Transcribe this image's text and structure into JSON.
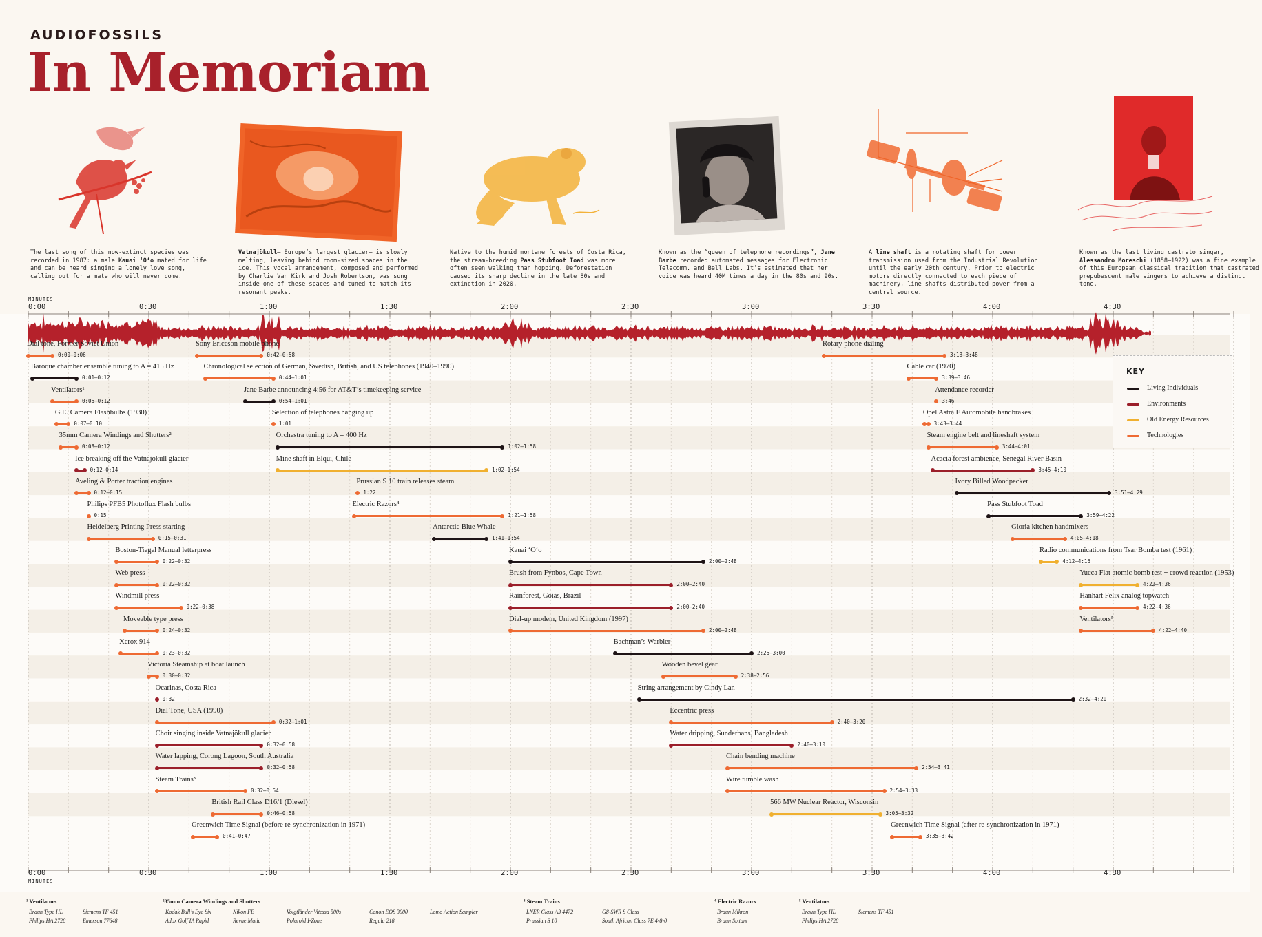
{
  "header": {
    "brand": "AUDIOFOSSILS",
    "title": "In Memoriam"
  },
  "cards": [
    {
      "icon": "bird-illustration-icon",
      "color": "#d9352b",
      "caption_html": "The last song of this now-extinct species was recorded in 1987: a male <b>Kauai ʻOʻo</b> mated for life and can be heard singing a lonely love song, calling out for a mate who will never come."
    },
    {
      "icon": "glacier-photo-icon",
      "color": "#f06428",
      "caption_html": "<b>Vatnajökull</b>– Europe’s largest glacier– is slowly melting, leaving behind room-sized spaces in the ice. This vocal arrangement, composed and performed by Charlie Van Kirk and Josh Robertson, was sung inside one of these spaces and tuned to match its resonant peaks."
    },
    {
      "icon": "frog-illustration-icon",
      "color": "#f3b23a",
      "caption_html": "Native to the humid montane forests of Costa Rica, the stream-breeding <b>Pass Stubfoot Toad</b> was more often seen walking than hopping. Deforestation caused its sharp decline in the late 80s and extinction in 2020."
    },
    {
      "icon": "telephone-woman-photo-icon",
      "color": "#1b1b1b",
      "caption_html": "Known as the “queen of telephone recordings”, <b>Jane Barbe</b> recorded automated messages for Electronic Telecomm. and Bell Labs. It’s estimated that her voice was heard 40M times a day in the 80s and 90s."
    },
    {
      "icon": "line-shaft-diagram-icon",
      "color": "#f06428",
      "caption_html": "A <b>line shaft</b> is a rotating shaft for power transmission used from the Industrial Revolution until the early 20th century. Prior to electric motors directly connected to each piece of machinery, line shafts distributed power from a central source."
    },
    {
      "icon": "singer-portrait-icon",
      "color": "#e02a2a",
      "caption_html": "Known as the last living castrato singer, <b>Alessandro Moreschi</b> (1858–1922) was a fine example of this European classical tradition that castrated prepubescent male singers to achieve a distinct tone."
    }
  ],
  "axis": {
    "label": "MINUTES",
    "max_seconds": 300,
    "ticks": [
      "0:00",
      "0:30",
      "1:00",
      "1:30",
      "2:00",
      "2:30",
      "3:00",
      "3:30",
      "4:00",
      "4:30"
    ]
  },
  "colors": {
    "living": "#1e1416",
    "environment": "#9b1f2a",
    "energy": "#f0b030",
    "technology": "#ee6a33",
    "waveform": "#b5212b",
    "title": "#a8212b"
  },
  "key": {
    "title": "KEY",
    "items": [
      {
        "label": "Living Individuals",
        "cat": "living"
      },
      {
        "label": "Environments",
        "cat": "environment"
      },
      {
        "label": "Old Energy Resources",
        "cat": "energy"
      },
      {
        "label": "Technologies",
        "cat": "technology"
      }
    ]
  },
  "events": [
    {
      "row": 0,
      "label": "Dial tone, Former Soviet Union",
      "time": "0:00–0:06",
      "start": 0,
      "end": 6,
      "cat": "technology"
    },
    {
      "row": 0,
      "label": "Sony Ericcson mobile phone",
      "time": "0:42–0:58",
      "start": 42,
      "end": 58,
      "cat": "technology"
    },
    {
      "row": 0,
      "label": "Rotary phone dialing",
      "time": "3:18–3:48",
      "start": 198,
      "end": 228,
      "cat": "technology"
    },
    {
      "row": 1,
      "label": "Baroque chamber ensemble tuning to A = 415 Hz",
      "time": "0:01–0:12",
      "start": 1,
      "end": 12,
      "cat": "living"
    },
    {
      "row": 1,
      "label": "Chronological selection of German, Swedish, British, and US telephones (1940–1990)",
      "time": "0:44–1:01",
      "start": 44,
      "end": 61,
      "cat": "technology"
    },
    {
      "row": 1,
      "label": "Cable car (1970)",
      "time": "3:39–3:46",
      "start": 219,
      "end": 226,
      "cat": "technology"
    },
    {
      "row": 2,
      "label": "Ventilators¹",
      "time": "0:06–0:12",
      "start": 6,
      "end": 12,
      "cat": "technology"
    },
    {
      "row": 2,
      "label": "Jane Barbe announcing 4:56 for AT&T’s timekeeping service",
      "time": "0:54–1:01",
      "start": 54,
      "end": 61,
      "cat": "living"
    },
    {
      "row": 2,
      "label": "Attendance recorder",
      "time": "3:46",
      "start": 226,
      "end": 226,
      "cat": "technology"
    },
    {
      "row": 3,
      "label": "G.E. Camera Flashbulbs (1930)",
      "time": "0:07–0:10",
      "start": 7,
      "end": 10,
      "cat": "technology"
    },
    {
      "row": 3,
      "label": "Selection of telephones hanging up",
      "time": "1:01",
      "start": 61,
      "end": 61,
      "cat": "technology"
    },
    {
      "row": 3,
      "label": "Opel Astra F Automobile handbrakes",
      "time": "3:43–3:44",
      "start": 223,
      "end": 224,
      "cat": "technology"
    },
    {
      "row": 4,
      "label": "35mm Camera Windings and Shutters²",
      "time": "0:08–0:12",
      "start": 8,
      "end": 12,
      "cat": "technology"
    },
    {
      "row": 4,
      "label": "Orchestra tuning to A = 400 Hz",
      "time": "1:02–1:58",
      "start": 62,
      "end": 118,
      "cat": "living"
    },
    {
      "row": 4,
      "label": "Steam engine belt and lineshaft system",
      "time": "3:44–4:01",
      "start": 224,
      "end": 241,
      "cat": "technology"
    },
    {
      "row": 5,
      "label": "Ice breaking off the Vatnajökull glacier",
      "time": "0:12–0:14",
      "start": 12,
      "end": 14,
      "cat": "environment"
    },
    {
      "row": 5,
      "label": "Mine shaft in Elqui, Chile",
      "time": "1:02–1:54",
      "start": 62,
      "end": 114,
      "cat": "energy"
    },
    {
      "row": 5,
      "label": "Acacia forest ambience, Senegal River Basin",
      "time": "3:45–4:10",
      "start": 225,
      "end": 250,
      "cat": "environment"
    },
    {
      "row": 6,
      "label": "Aveling & Porter traction engines",
      "time": "0:12–0:15",
      "start": 12,
      "end": 15,
      "cat": "technology"
    },
    {
      "row": 6,
      "label": "Prussian S 10 train releases steam",
      "time": "1:22",
      "start": 82,
      "end": 82,
      "cat": "technology"
    },
    {
      "row": 6,
      "label": "Ivory Billed Woodpecker",
      "time": "3:51–4:29",
      "start": 231,
      "end": 269,
      "cat": "living"
    },
    {
      "row": 7,
      "label": "Philips PFB5 Photoflux Flash bulbs",
      "time": "0:15",
      "start": 15,
      "end": 15,
      "cat": "technology"
    },
    {
      "row": 7,
      "label": "Electric Razors⁴",
      "time": "1:21–1:58",
      "start": 81,
      "end": 118,
      "cat": "technology"
    },
    {
      "row": 7,
      "label": "Pass Stubfoot Toad",
      "time": "3:59–4:22",
      "start": 239,
      "end": 262,
      "cat": "living"
    },
    {
      "row": 8,
      "label": "Heidelberg Printing Press starting",
      "time": "0:15–0:31",
      "start": 15,
      "end": 31,
      "cat": "technology"
    },
    {
      "row": 8,
      "label": "Antarctic Blue Whale",
      "time": "1:41–1:54",
      "start": 101,
      "end": 114,
      "cat": "living"
    },
    {
      "row": 8,
      "label": "Gloria kitchen handmixers",
      "time": "4:05–4:18",
      "start": 245,
      "end": 258,
      "cat": "technology"
    },
    {
      "row": 9,
      "label": "Boston-Tiegel Manual letterpress",
      "time": "0:22–0:32",
      "start": 22,
      "end": 32,
      "cat": "technology"
    },
    {
      "row": 9,
      "label": "Kauai ʻOʻo",
      "time": "2:00–2:48",
      "start": 120,
      "end": 168,
      "cat": "living"
    },
    {
      "row": 9,
      "label": "Radio communications from Tsar Bomba test (1961)",
      "time": "4:12–4:16",
      "start": 252,
      "end": 256,
      "cat": "energy"
    },
    {
      "row": 10,
      "label": "Web press",
      "time": "0:22–0:32",
      "start": 22,
      "end": 32,
      "cat": "technology"
    },
    {
      "row": 10,
      "label": "Brush from Fynbos, Cape Town",
      "time": "2:00–2:40",
      "start": 120,
      "end": 160,
      "cat": "environment"
    },
    {
      "row": 10,
      "label": "Yucca Flat atomic bomb test + crowd reaction (1953)",
      "time": "4:22–4:36",
      "start": 262,
      "end": 276,
      "cat": "energy"
    },
    {
      "row": 11,
      "label": "Windmill press",
      "time": "0:22–0:38",
      "start": 22,
      "end": 38,
      "cat": "technology"
    },
    {
      "row": 11,
      "label": "Rainforest, Goiás, Brazil",
      "time": "2:00–2:40",
      "start": 120,
      "end": 160,
      "cat": "environment"
    },
    {
      "row": 11,
      "label": "Hanhart Felix analog topwatch",
      "time": "4:22–4:36",
      "start": 262,
      "end": 276,
      "cat": "technology"
    },
    {
      "row": 12,
      "label": "Moveable type press",
      "time": "0:24–0:32",
      "start": 24,
      "end": 32,
      "cat": "technology"
    },
    {
      "row": 12,
      "label": "Dial-up modem, United Kingdom (1997)",
      "time": "2:00–2:48",
      "start": 120,
      "end": 168,
      "cat": "technology"
    },
    {
      "row": 12,
      "label": "Ventilators⁵",
      "time": "4:22–4:40",
      "start": 262,
      "end": 280,
      "cat": "technology"
    },
    {
      "row": 13,
      "label": "Xerox 914",
      "time": "0:23–0:32",
      "start": 23,
      "end": 32,
      "cat": "technology"
    },
    {
      "row": 13,
      "label": "Bachman’s Warbler",
      "time": "2:26–3:00",
      "start": 146,
      "end": 180,
      "cat": "living"
    },
    {
      "row": 14,
      "label": "Victoria Steamship at boat launch",
      "time": "0:30–0:32",
      "start": 30,
      "end": 32,
      "cat": "technology"
    },
    {
      "row": 14,
      "label": "Wooden bevel gear",
      "time": "2:38–2:56",
      "start": 158,
      "end": 176,
      "cat": "technology"
    },
    {
      "row": 15,
      "label": "Ocarinas, Costa Rica",
      "time": "0:32",
      "start": 32,
      "end": 32,
      "cat": "environment"
    },
    {
      "row": 15,
      "label": "String arrangement by Cindy Lan",
      "time": "2:32–4:20",
      "start": 152,
      "end": 260,
      "cat": "living"
    },
    {
      "row": 16,
      "label": "Dial Tone, USA (1990)",
      "time": "0:32–1:01",
      "start": 32,
      "end": 61,
      "cat": "technology"
    },
    {
      "row": 16,
      "label": "Eccentric press",
      "time": "2:40–3:20",
      "start": 160,
      "end": 200,
      "cat": "technology"
    },
    {
      "row": 17,
      "label": "Choir singing inside Vatnajökull glacier",
      "time": "0:32–0:58",
      "start": 32,
      "end": 58,
      "cat": "environment"
    },
    {
      "row": 17,
      "label": "Water dripping, Sunderbans, Bangladesh",
      "time": "2:40–3:10",
      "start": 160,
      "end": 190,
      "cat": "environment"
    },
    {
      "row": 18,
      "label": "Water lapping, Corong Lagoon, South Australia",
      "time": "0:32–0:58",
      "start": 32,
      "end": 58,
      "cat": "environment"
    },
    {
      "row": 18,
      "label": "Chain bending machine",
      "time": "2:54–3:41",
      "start": 174,
      "end": 221,
      "cat": "technology"
    },
    {
      "row": 19,
      "label": "Steam Trains³",
      "time": "0:32–0:54",
      "start": 32,
      "end": 54,
      "cat": "technology"
    },
    {
      "row": 19,
      "label": "Wire tumble wash",
      "time": "2:54–3:33",
      "start": 174,
      "end": 213,
      "cat": "technology"
    },
    {
      "row": 20,
      "label": "British Rail Class D16/1 (Diesel)",
      "time": "0:46–0:58",
      "start": 46,
      "end": 58,
      "cat": "technology"
    },
    {
      "row": 20,
      "label": "566 MW Nuclear Reactor, Wisconsin",
      "time": "3:05–3:32",
      "start": 185,
      "end": 212,
      "cat": "energy"
    },
    {
      "row": 21,
      "label": "Greenwich Time Signal (before re-synchronization in 1971)",
      "time": "0:41–0:47",
      "start": 41,
      "end": 47,
      "cat": "technology"
    },
    {
      "row": 21,
      "label": "Greenwich Time Signal (after re-synchronization in 1971)",
      "time": "3:35–3:42",
      "start": 215,
      "end": 222,
      "cat": "technology"
    }
  ],
  "footnotes": [
    {
      "title": "¹ Ventilators",
      "cols": [
        [
          "Braun Type HL",
          "Philips HA 2728"
        ],
        [
          "Siemens TF 451",
          "Emerson 77648"
        ]
      ]
    },
    {
      "title": "²35mm Camera Windings and Shutters",
      "cols": [
        [
          "Kodak Bull’s Eye Six",
          "Adox Golf IA Rapid"
        ],
        [
          "Nikon FE",
          "Revue Matic"
        ],
        [
          "Voigtländer Vitessa 500s",
          "Polaroid I-Zone"
        ],
        [
          "Canon EOS 3000",
          "Regula 218"
        ],
        [
          "Lomo Action Sampler"
        ]
      ]
    },
    {
      "title": "³ Steam Trains",
      "cols": [
        [
          "LNER Class A3 4472",
          "Prussian S 10"
        ],
        [
          "G8-SWR S Class",
          "South African Class 7E 4-8-0"
        ]
      ]
    },
    {
      "title": "⁴ Electric Razors",
      "cols": [
        [
          "Braun Mikron",
          "Braun Sixtant"
        ]
      ]
    },
    {
      "title": "⁵ Ventilators",
      "cols": [
        [
          "Braun Type HL",
          "Philips HA 2728"
        ],
        [
          "Siemens TF 451"
        ]
      ]
    }
  ]
}
